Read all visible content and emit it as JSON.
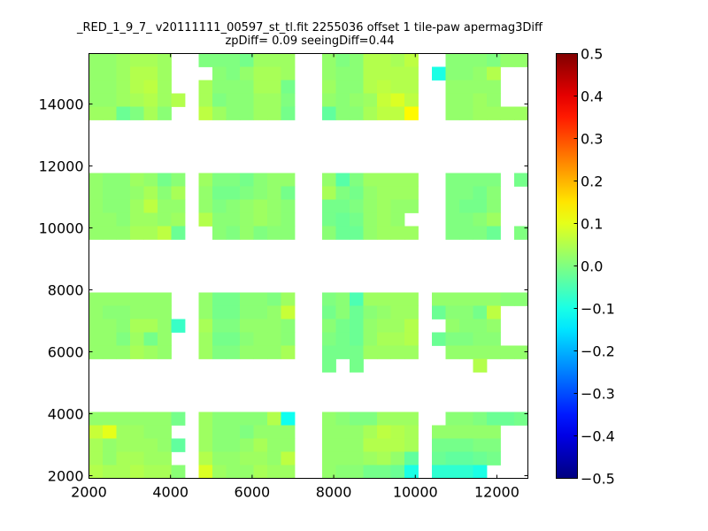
{
  "chart_data": {
    "type": "heatmap",
    "title": "_RED_1_9_7_ v20111111_00597_st_tl.fit 2255036 offset 1 tile-paw apermag3Diff",
    "subtitle": "zpDiff= 0.09 seeingDiff=0.44",
    "xlabel": "",
    "ylabel": "",
    "xlim": [
      2000,
      12760
    ],
    "ylim": [
      1914,
      15630
    ],
    "xticks": [
      2000,
      4000,
      6000,
      8000,
      10000,
      12000
    ],
    "yticks": [
      2000,
      4000,
      6000,
      8000,
      10000,
      12000,
      14000
    ],
    "colormap": "jet",
    "clim": [
      -0.5,
      0.5
    ],
    "colorbar_ticks": [
      -0.5,
      -0.4,
      -0.3,
      -0.2,
      -0.1,
      0.0,
      0.1,
      0.2,
      0.3,
      0.4,
      0.5
    ],
    "colorbar_tick_labels": [
      "−0.5",
      "−0.4",
      "−0.3",
      "−0.2",
      "−0.1",
      "0.0",
      "0.1",
      "0.2",
      "0.3",
      "0.4",
      "0.5"
    ],
    "grid_x_start": 2000,
    "grid_x_step": 336.25,
    "grid_y_top": 15630,
    "grid_y_step": 428.6,
    "z_rows_top_to_bottom": [
      [
        0.02,
        0.02,
        0.03,
        0.04,
        0.04,
        0.03,
        null,
        null,
        0.0,
        0.0,
        0.0,
        -0.01,
        0.03,
        0.03,
        0.03,
        null,
        null,
        0.02,
        0.0,
        0.01,
        0.05,
        0.05,
        0.04,
        0.06,
        null,
        null,
        0.01,
        0.01,
        0.01,
        0.0,
        0.02,
        0.02
      ],
      [
        0.02,
        0.02,
        0.03,
        0.05,
        0.05,
        0.03,
        null,
        null,
        null,
        0.01,
        0.0,
        0.02,
        0.04,
        0.04,
        0.03,
        null,
        null,
        0.02,
        0.01,
        0.01,
        0.05,
        0.05,
        0.05,
        0.05,
        null,
        -0.1,
        0.01,
        0.01,
        0.02,
        0.05,
        null,
        null
      ],
      [
        0.02,
        0.02,
        0.03,
        0.05,
        0.06,
        0.03,
        null,
        null,
        0.04,
        0.01,
        0.01,
        0.01,
        0.04,
        0.04,
        -0.01,
        null,
        null,
        0.03,
        0.01,
        0.01,
        0.05,
        0.06,
        0.05,
        0.05,
        null,
        null,
        0.02,
        0.02,
        0.02,
        0.02,
        null,
        null
      ],
      [
        0.02,
        0.02,
        0.03,
        0.04,
        0.05,
        0.03,
        0.05,
        null,
        0.04,
        0.0,
        0.01,
        0.01,
        0.03,
        0.03,
        0.0,
        null,
        null,
        0.02,
        0.01,
        0.02,
        0.03,
        0.07,
        0.09,
        0.06,
        null,
        null,
        0.02,
        0.02,
        0.03,
        0.02,
        null,
        null
      ],
      [
        0.03,
        0.03,
        -0.02,
        0.0,
        0.04,
        0.01,
        null,
        null,
        0.06,
        0.03,
        0.01,
        0.01,
        0.03,
        0.03,
        -0.01,
        null,
        null,
        -0.03,
        0.01,
        0.01,
        0.04,
        0.06,
        0.06,
        0.13,
        null,
        null,
        0.02,
        0.02,
        0.03,
        0.03,
        0.03,
        0.03
      ],
      [],
      [],
      [],
      [],
      [
        0.02,
        0.01,
        0.01,
        0.03,
        0.02,
        -0.01,
        0.01,
        null,
        0.03,
        0.0,
        0.0,
        -0.01,
        0.01,
        0.02,
        0.02,
        null,
        null,
        0.02,
        -0.04,
        0.0,
        0.03,
        0.03,
        0.03,
        0.03,
        null,
        null,
        0.0,
        0.0,
        0.0,
        0.0,
        null,
        -0.01
      ],
      [
        0.02,
        0.01,
        0.01,
        0.02,
        0.04,
        0.01,
        0.04,
        null,
        0.02,
        -0.01,
        -0.01,
        0.0,
        0.01,
        0.02,
        -0.01,
        null,
        null,
        0.04,
        0.0,
        -0.01,
        0.02,
        0.03,
        0.03,
        0.03,
        null,
        null,
        0.0,
        0.0,
        -0.01,
        0.01,
        null,
        null
      ],
      [
        0.02,
        0.01,
        0.01,
        0.03,
        0.06,
        0.02,
        0.02,
        null,
        0.02,
        0.0,
        0.01,
        0.02,
        0.03,
        0.02,
        0.01,
        null,
        null,
        -0.01,
        -0.01,
        0.0,
        0.02,
        0.03,
        0.02,
        0.02,
        null,
        null,
        0.0,
        -0.01,
        -0.01,
        0.01,
        null,
        null
      ],
      [
        0.02,
        0.02,
        0.01,
        0.03,
        0.03,
        0.02,
        0.03,
        null,
        0.05,
        0.01,
        0.01,
        0.02,
        0.03,
        0.02,
        0.01,
        null,
        null,
        -0.01,
        -0.02,
        -0.01,
        0.02,
        0.03,
        0.02,
        null,
        null,
        null,
        0.0,
        0.0,
        0.01,
        0.03,
        null,
        null
      ],
      [
        0.02,
        0.02,
        0.02,
        0.04,
        0.04,
        0.06,
        -0.02,
        null,
        null,
        0.01,
        0.0,
        0.02,
        0.0,
        0.01,
        0.01,
        null,
        null,
        0.01,
        -0.02,
        -0.02,
        0.02,
        0.03,
        0.03,
        0.03,
        null,
        null,
        0.0,
        0.0,
        0.0,
        -0.02,
        null,
        0.0
      ],
      [],
      [],
      [],
      [],
      [
        0.02,
        0.02,
        0.02,
        0.02,
        0.02,
        0.02,
        null,
        null,
        0.02,
        -0.01,
        -0.01,
        0.01,
        0.01,
        0.0,
        0.03,
        null,
        null,
        0.0,
        0.01,
        -0.05,
        0.03,
        0.03,
        0.03,
        0.03,
        null,
        0.02,
        0.02,
        0.02,
        0.02,
        0.02,
        0.01,
        0.01
      ],
      [
        0.02,
        0.01,
        0.01,
        0.02,
        0.02,
        0.02,
        null,
        null,
        0.02,
        -0.01,
        -0.01,
        0.01,
        0.01,
        0.02,
        0.07,
        null,
        null,
        -0.01,
        0.01,
        -0.02,
        0.01,
        0.02,
        0.03,
        0.03,
        null,
        -0.02,
        0.01,
        0.01,
        -0.01,
        0.06,
        null,
        null
      ],
      [
        0.02,
        0.02,
        0.01,
        0.04,
        0.04,
        0.02,
        -0.07,
        null,
        0.04,
        0.0,
        0.0,
        0.02,
        0.02,
        0.02,
        0.01,
        null,
        null,
        0.01,
        -0.01,
        -0.02,
        0.02,
        0.03,
        0.03,
        0.05,
        null,
        null,
        0.02,
        0.01,
        0.01,
        0.02,
        null,
        null
      ],
      [
        0.02,
        0.02,
        0.0,
        0.03,
        -0.01,
        0.02,
        null,
        null,
        0.03,
        -0.01,
        -0.01,
        0.01,
        0.02,
        0.02,
        0.01,
        null,
        null,
        0.0,
        -0.01,
        -0.02,
        0.02,
        0.04,
        0.04,
        0.05,
        null,
        -0.02,
        0.0,
        0.0,
        0.01,
        0.01,
        null,
        null
      ],
      [
        0.02,
        0.02,
        0.02,
        0.04,
        0.03,
        0.02,
        null,
        null,
        0.03,
        0.0,
        0.0,
        0.02,
        0.02,
        0.02,
        0.04,
        null,
        null,
        -0.01,
        -0.01,
        -0.01,
        0.03,
        0.03,
        0.03,
        0.03,
        null,
        null,
        0.02,
        0.02,
        0.02,
        0.02,
        0.02,
        0.02
      ],
      [
        null,
        null,
        null,
        null,
        null,
        null,
        null,
        null,
        null,
        null,
        null,
        null,
        null,
        null,
        null,
        null,
        null,
        -0.01,
        null,
        -0.01,
        null,
        null,
        null,
        null,
        null,
        null,
        null,
        null,
        0.05,
        null,
        null,
        null
      ],
      [],
      [],
      [],
      [
        0.02,
        0.02,
        0.02,
        0.02,
        0.02,
        0.02,
        -0.01,
        null,
        0.03,
        0.01,
        0.01,
        0.01,
        0.01,
        0.05,
        -0.11,
        null,
        null,
        0.02,
        0.01,
        0.0,
        0.0,
        0.03,
        0.03,
        0.03,
        null,
        null,
        0.01,
        0.01,
        0.0,
        -0.02,
        -0.02,
        -0.01
      ],
      [
        0.07,
        0.1,
        0.03,
        0.03,
        0.02,
        0.02,
        null,
        null,
        0.03,
        0.01,
        0.01,
        0.0,
        0.02,
        0.02,
        0.02,
        null,
        null,
        0.02,
        0.02,
        0.02,
        0.04,
        0.06,
        0.05,
        0.04,
        null,
        0.02,
        0.02,
        0.02,
        0.02,
        0.02,
        null,
        null
      ],
      [
        0.04,
        0.02,
        0.03,
        0.03,
        0.03,
        0.02,
        -0.03,
        null,
        0.03,
        0.01,
        0.01,
        0.02,
        0.04,
        0.02,
        0.02,
        null,
        null,
        0.02,
        0.02,
        0.02,
        0.05,
        0.05,
        0.05,
        0.04,
        null,
        -0.01,
        -0.01,
        -0.01,
        0.0,
        0.0,
        null,
        null
      ],
      [
        0.04,
        0.02,
        0.04,
        0.04,
        0.03,
        0.03,
        null,
        null,
        0.05,
        0.02,
        0.02,
        0.03,
        0.03,
        0.02,
        0.06,
        null,
        null,
        0.02,
        0.02,
        0.02,
        0.03,
        0.04,
        0.02,
        -0.03,
        null,
        -0.02,
        -0.03,
        -0.03,
        -0.02,
        -0.01,
        null,
        null
      ],
      [
        0.05,
        0.04,
        0.04,
        0.05,
        0.04,
        0.04,
        0.01,
        null,
        0.09,
        0.03,
        0.02,
        0.02,
        0.04,
        0.03,
        0.03,
        null,
        null,
        0.02,
        0.01,
        0.01,
        -0.01,
        -0.01,
        -0.02,
        -0.1,
        null,
        -0.08,
        -0.08,
        -0.08,
        -0.1,
        null,
        null,
        null
      ]
    ]
  }
}
